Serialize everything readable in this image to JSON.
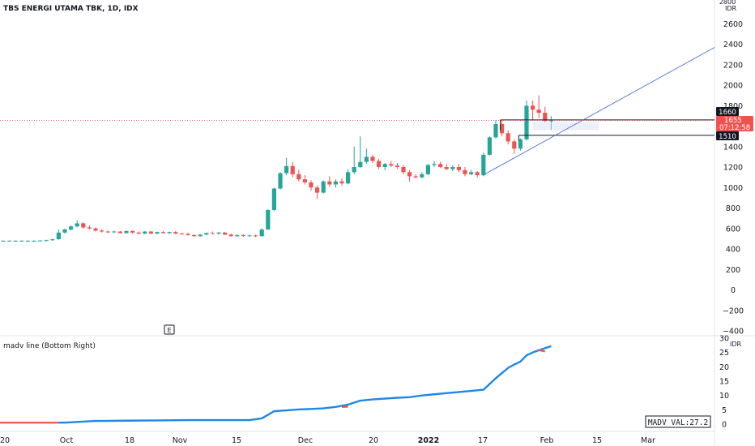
{
  "header": {
    "title": "TBS ENERGI UTAMA TBK, 1D, IDX"
  },
  "colors": {
    "up": "#26a69a",
    "down": "#ef5350",
    "trendline": "#4a6fd8",
    "madv_line": "#1e88e5",
    "madv_down": "#ef5350",
    "border": "#e0e3eb",
    "axis_text": "#131722"
  },
  "price_axis": {
    "currency": "IDR",
    "ticks": [
      "2800",
      "2600",
      "2400",
      "2200",
      "2000",
      "1800",
      "1600",
      "1400",
      "1200",
      "1000",
      "800",
      "600",
      "400",
      "200",
      "0",
      "−200",
      "−400"
    ],
    "tags": {
      "upper_level": "1660",
      "last_price": "1655",
      "countdown": "07:12:58",
      "lower_level": "1510"
    }
  },
  "time_axis": {
    "labels": [
      "20",
      "Oct",
      "18",
      "Nov",
      "15",
      "Dec",
      "20",
      "2022",
      "17",
      "Feb",
      "15",
      "Mar"
    ]
  },
  "event_marker": "E",
  "indicator": {
    "name": "madv line (Bottom Right)",
    "currency": "IDR",
    "ticks": [
      "30",
      "25",
      "20",
      "15",
      "10",
      "5",
      "0"
    ],
    "value_label": "MADV VAL:27.2"
  },
  "chart_data": [
    {
      "type": "candlestick",
      "title": "TBS ENERGI UTAMA TBK, 1D, IDX",
      "ylabel": "IDR",
      "ylim": [
        -400,
        2800
      ],
      "levels": [
        1660,
        1510
      ],
      "last_price": 1655,
      "trendline": {
        "from": {
          "date": "2022-01-14",
          "price": 1120
        },
        "to": {
          "date": "2022-03-31",
          "price": 2400
        }
      },
      "series": [
        {
          "x": 0,
          "o": 480,
          "h": 485,
          "l": 475,
          "c": 480
        },
        {
          "x": 1,
          "o": 480,
          "h": 485,
          "l": 475,
          "c": 480
        },
        {
          "x": 2,
          "o": 480,
          "h": 485,
          "l": 475,
          "c": 480
        },
        {
          "x": 3,
          "o": 480,
          "h": 485,
          "l": 475,
          "c": 480
        },
        {
          "x": 4,
          "o": 480,
          "h": 485,
          "l": 475,
          "c": 480
        },
        {
          "x": 5,
          "o": 480,
          "h": 485,
          "l": 475,
          "c": 480
        },
        {
          "x": 6,
          "o": 480,
          "h": 485,
          "l": 475,
          "c": 482
        },
        {
          "x": 7,
          "o": 480,
          "h": 490,
          "l": 475,
          "c": 485
        },
        {
          "x": 8,
          "o": 485,
          "h": 500,
          "l": 480,
          "c": 495
        },
        {
          "x": 9,
          "o": 495,
          "h": 590,
          "l": 490,
          "c": 560
        },
        {
          "x": 10,
          "o": 560,
          "h": 600,
          "l": 550,
          "c": 590
        },
        {
          "x": 11,
          "o": 590,
          "h": 630,
          "l": 580,
          "c": 620
        },
        {
          "x": 12,
          "o": 620,
          "h": 680,
          "l": 610,
          "c": 650
        },
        {
          "x": 13,
          "o": 650,
          "h": 660,
          "l": 600,
          "c": 610
        },
        {
          "x": 14,
          "o": 610,
          "h": 630,
          "l": 590,
          "c": 600
        },
        {
          "x": 15,
          "o": 600,
          "h": 610,
          "l": 570,
          "c": 580
        },
        {
          "x": 16,
          "o": 580,
          "h": 590,
          "l": 560,
          "c": 570
        },
        {
          "x": 17,
          "o": 570,
          "h": 580,
          "l": 555,
          "c": 565
        },
        {
          "x": 18,
          "o": 565,
          "h": 580,
          "l": 555,
          "c": 570
        },
        {
          "x": 19,
          "o": 570,
          "h": 575,
          "l": 550,
          "c": 555
        },
        {
          "x": 20,
          "o": 555,
          "h": 580,
          "l": 550,
          "c": 575
        },
        {
          "x": 21,
          "o": 575,
          "h": 580,
          "l": 550,
          "c": 560
        },
        {
          "x": 22,
          "o": 560,
          "h": 570,
          "l": 545,
          "c": 550
        },
        {
          "x": 23,
          "o": 550,
          "h": 575,
          "l": 545,
          "c": 570
        },
        {
          "x": 24,
          "o": 570,
          "h": 575,
          "l": 545,
          "c": 550
        },
        {
          "x": 25,
          "o": 550,
          "h": 570,
          "l": 545,
          "c": 565
        },
        {
          "x": 26,
          "o": 565,
          "h": 575,
          "l": 550,
          "c": 555
        },
        {
          "x": 27,
          "o": 555,
          "h": 570,
          "l": 545,
          "c": 565
        },
        {
          "x": 28,
          "o": 565,
          "h": 575,
          "l": 545,
          "c": 550
        },
        {
          "x": 29,
          "o": 550,
          "h": 560,
          "l": 540,
          "c": 545
        },
        {
          "x": 30,
          "o": 545,
          "h": 560,
          "l": 530,
          "c": 535
        },
        {
          "x": 31,
          "o": 535,
          "h": 545,
          "l": 520,
          "c": 525
        },
        {
          "x": 32,
          "o": 525,
          "h": 545,
          "l": 520,
          "c": 540
        },
        {
          "x": 33,
          "o": 540,
          "h": 560,
          "l": 535,
          "c": 555
        },
        {
          "x": 34,
          "o": 555,
          "h": 570,
          "l": 545,
          "c": 550
        },
        {
          "x": 35,
          "o": 550,
          "h": 565,
          "l": 540,
          "c": 560
        },
        {
          "x": 36,
          "o": 560,
          "h": 565,
          "l": 535,
          "c": 540
        },
        {
          "x": 37,
          "o": 540,
          "h": 550,
          "l": 520,
          "c": 525
        },
        {
          "x": 38,
          "o": 525,
          "h": 540,
          "l": 515,
          "c": 535
        },
        {
          "x": 39,
          "o": 535,
          "h": 545,
          "l": 520,
          "c": 528
        },
        {
          "x": 40,
          "o": 528,
          "h": 540,
          "l": 520,
          "c": 532
        },
        {
          "x": 41,
          "o": 532,
          "h": 540,
          "l": 515,
          "c": 525
        },
        {
          "x": 42,
          "o": 525,
          "h": 600,
          "l": 520,
          "c": 590
        },
        {
          "x": 43,
          "o": 590,
          "h": 790,
          "l": 585,
          "c": 780
        },
        {
          "x": 44,
          "o": 780,
          "h": 1000,
          "l": 770,
          "c": 990
        },
        {
          "x": 45,
          "o": 990,
          "h": 1150,
          "l": 980,
          "c": 1140
        },
        {
          "x": 46,
          "o": 1140,
          "h": 1290,
          "l": 1120,
          "c": 1210
        },
        {
          "x": 47,
          "o": 1210,
          "h": 1250,
          "l": 1100,
          "c": 1130
        },
        {
          "x": 48,
          "o": 1130,
          "h": 1170,
          "l": 1060,
          "c": 1080
        },
        {
          "x": 49,
          "o": 1080,
          "h": 1120,
          "l": 1030,
          "c": 1050
        },
        {
          "x": 50,
          "o": 1050,
          "h": 1070,
          "l": 970,
          "c": 1000
        },
        {
          "x": 51,
          "o": 1000,
          "h": 1020,
          "l": 890,
          "c": 950
        },
        {
          "x": 52,
          "o": 950,
          "h": 1070,
          "l": 940,
          "c": 1060
        },
        {
          "x": 53,
          "o": 1060,
          "h": 1110,
          "l": 1010,
          "c": 1030
        },
        {
          "x": 54,
          "o": 1030,
          "h": 1080,
          "l": 1000,
          "c": 1060
        },
        {
          "x": 55,
          "o": 1060,
          "h": 1090,
          "l": 1020,
          "c": 1040
        },
        {
          "x": 56,
          "o": 1040,
          "h": 1180,
          "l": 1030,
          "c": 1150
        },
        {
          "x": 57,
          "o": 1150,
          "h": 1400,
          "l": 1130,
          "c": 1200
        },
        {
          "x": 58,
          "o": 1200,
          "h": 1500,
          "l": 1190,
          "c": 1250
        },
        {
          "x": 59,
          "o": 1250,
          "h": 1380,
          "l": 1230,
          "c": 1300
        },
        {
          "x": 60,
          "o": 1300,
          "h": 1320,
          "l": 1240,
          "c": 1260
        },
        {
          "x": 61,
          "o": 1260,
          "h": 1280,
          "l": 1180,
          "c": 1200
        },
        {
          "x": 62,
          "o": 1200,
          "h": 1240,
          "l": 1170,
          "c": 1230
        },
        {
          "x": 63,
          "o": 1230,
          "h": 1260,
          "l": 1200,
          "c": 1215
        },
        {
          "x": 64,
          "o": 1215,
          "h": 1240,
          "l": 1180,
          "c": 1200
        },
        {
          "x": 65,
          "o": 1200,
          "h": 1220,
          "l": 1130,
          "c": 1150
        },
        {
          "x": 66,
          "o": 1150,
          "h": 1170,
          "l": 1060,
          "c": 1110
        },
        {
          "x": 67,
          "o": 1110,
          "h": 1130,
          "l": 1090,
          "c": 1100
        },
        {
          "x": 68,
          "o": 1100,
          "h": 1150,
          "l": 1090,
          "c": 1130
        },
        {
          "x": 69,
          "o": 1130,
          "h": 1230,
          "l": 1120,
          "c": 1220
        },
        {
          "x": 70,
          "o": 1220,
          "h": 1260,
          "l": 1200,
          "c": 1230
        },
        {
          "x": 71,
          "o": 1230,
          "h": 1250,
          "l": 1190,
          "c": 1200
        },
        {
          "x": 72,
          "o": 1200,
          "h": 1230,
          "l": 1170,
          "c": 1180
        },
        {
          "x": 73,
          "o": 1180,
          "h": 1220,
          "l": 1160,
          "c": 1200
        },
        {
          "x": 74,
          "o": 1200,
          "h": 1230,
          "l": 1150,
          "c": 1170
        },
        {
          "x": 75,
          "o": 1170,
          "h": 1200,
          "l": 1110,
          "c": 1130
        },
        {
          "x": 76,
          "o": 1130,
          "h": 1170,
          "l": 1120,
          "c": 1150
        },
        {
          "x": 77,
          "o": 1150,
          "h": 1160,
          "l": 1100,
          "c": 1120
        },
        {
          "x": 78,
          "o": 1120,
          "h": 1340,
          "l": 1110,
          "c": 1320
        },
        {
          "x": 79,
          "o": 1320,
          "h": 1500,
          "l": 1310,
          "c": 1490
        },
        {
          "x": 80,
          "o": 1490,
          "h": 1660,
          "l": 1480,
          "c": 1620
        },
        {
          "x": 81,
          "o": 1620,
          "h": 1660,
          "l": 1500,
          "c": 1530
        },
        {
          "x": 82,
          "o": 1530,
          "h": 1560,
          "l": 1420,
          "c": 1450
        },
        {
          "x": 83,
          "o": 1450,
          "h": 1470,
          "l": 1330,
          "c": 1380
        },
        {
          "x": 84,
          "o": 1380,
          "h": 1480,
          "l": 1360,
          "c": 1470
        },
        {
          "x": 85,
          "o": 1470,
          "h": 1850,
          "l": 1460,
          "c": 1800
        },
        {
          "x": 86,
          "o": 1800,
          "h": 1850,
          "l": 1660,
          "c": 1760
        },
        {
          "x": 87,
          "o": 1760,
          "h": 1900,
          "l": 1680,
          "c": 1730
        },
        {
          "x": 88,
          "o": 1730,
          "h": 1790,
          "l": 1640,
          "c": 1650
        },
        {
          "x": 89,
          "o": 1650,
          "h": 1700,
          "l": 1560,
          "c": 1655
        }
      ]
    },
    {
      "type": "line",
      "title": "madv line (Bottom Right)",
      "ylim": [
        0,
        30
      ],
      "x": [
        0,
        5,
        10,
        15,
        20,
        25,
        30,
        35,
        40,
        42,
        44,
        46,
        48,
        50,
        52,
        54,
        56,
        58,
        60,
        62,
        64,
        66,
        68,
        70,
        72,
        74,
        76,
        78,
        80,
        81,
        82,
        83,
        84,
        85,
        86,
        87,
        88,
        89
      ],
      "values": [
        0.5,
        0.5,
        0.5,
        1.1,
        1.2,
        1.3,
        1.4,
        1.4,
        1.4,
        2.0,
        4.5,
        4.8,
        5.1,
        5.3,
        5.5,
        6.0,
        6.8,
        8.2,
        8.6,
        8.9,
        9.2,
        9.4,
        10.0,
        10.4,
        10.8,
        11.2,
        11.6,
        12.0,
        16.0,
        17.8,
        19.6,
        20.8,
        21.8,
        24.0,
        25.0,
        25.8,
        26.5,
        27.2
      ]
    }
  ]
}
